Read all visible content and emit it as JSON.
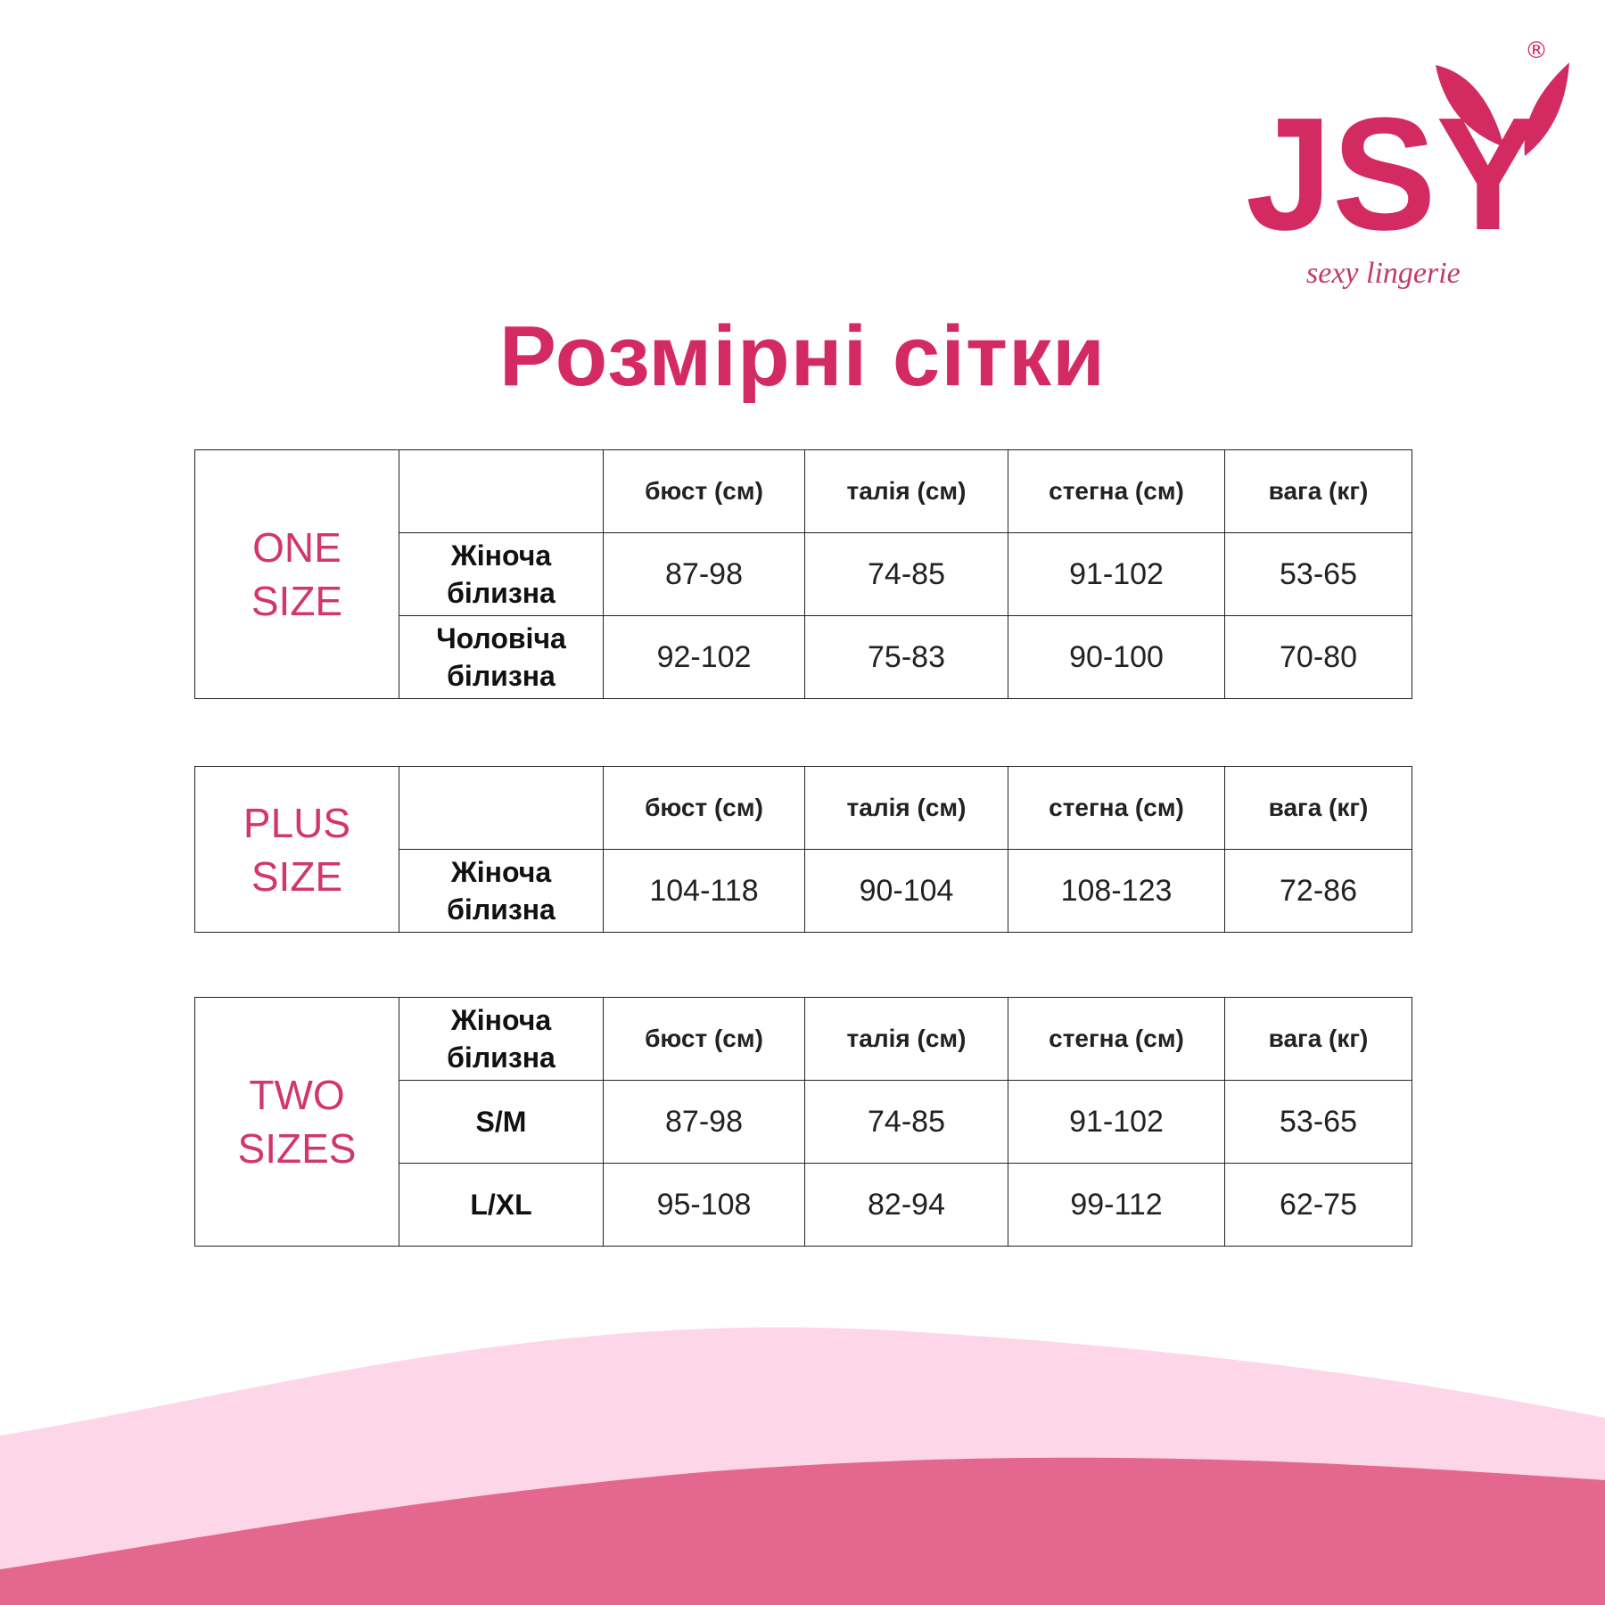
{
  "brand": {
    "name": "JSY",
    "tagline": "sexy lingerie",
    "registered": "®",
    "color": "#d42a62"
  },
  "title": "Розмірні сітки",
  "headers": [
    "бюст (см)",
    "талія (см)",
    "стегна (см)",
    "вага (кг)"
  ],
  "tables": [
    {
      "size_label": [
        "ONE",
        "SIZE"
      ],
      "corner": "",
      "rows": [
        {
          "label": [
            "Жіноча",
            "білизна"
          ],
          "values": [
            "87-98",
            "74-85",
            "91-102",
            "53-65"
          ]
        },
        {
          "label": [
            "Чоловіча",
            "білизна"
          ],
          "values": [
            "92-102",
            "75-83",
            "90-100",
            "70-80"
          ]
        }
      ]
    },
    {
      "size_label": [
        "PLUS",
        "SIZE"
      ],
      "corner": "",
      "rows": [
        {
          "label": [
            "Жіноча",
            "білизна"
          ],
          "values": [
            "104-118",
            "90-104",
            "108-123",
            "72-86"
          ]
        }
      ]
    },
    {
      "size_label": [
        "TWO",
        "SIZES"
      ],
      "corner": [
        "Жіноча",
        "білизна"
      ],
      "rows": [
        {
          "label": [
            "S/M"
          ],
          "values": [
            "87-98",
            "74-85",
            "91-102",
            "53-65"
          ]
        },
        {
          "label": [
            "L/XL"
          ],
          "values": [
            "95-108",
            "82-94",
            "99-112",
            "62-75"
          ]
        }
      ]
    }
  ]
}
